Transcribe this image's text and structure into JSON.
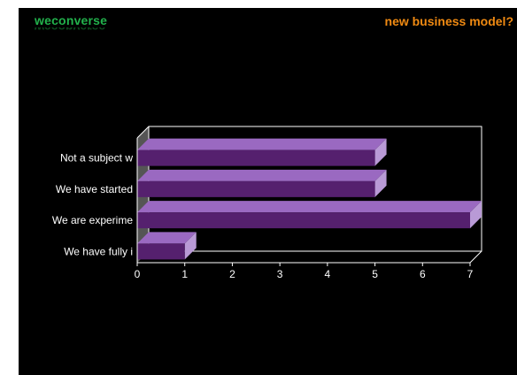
{
  "brand": {
    "name": "weconverse"
  },
  "chart_data": {
    "type": "bar",
    "orientation": "horizontal",
    "title": "new business model?",
    "categories": [
      "Not a subject w",
      "We have started",
      "We are experime",
      "We have fully i"
    ],
    "values": [
      5,
      5,
      7,
      1
    ],
    "xlim": [
      0,
      7
    ],
    "x_ticks": [
      0,
      1,
      2,
      3,
      4,
      5,
      6,
      7
    ],
    "grid": false,
    "legend": "none",
    "style": "3d"
  },
  "colors": {
    "background": "#000000",
    "brand": "#22b24c",
    "title": "#f08a12",
    "bar_front": "#55206e",
    "bar_top": "#9a69c1",
    "bar_side": "#b99ad6",
    "axis": "#ffffff",
    "floor": "#555555"
  }
}
